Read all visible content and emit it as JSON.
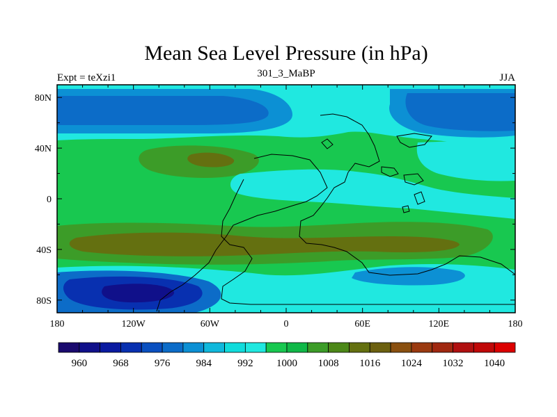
{
  "chart_data": {
    "type": "heatmap",
    "title": "Mean Sea Level Pressure (in hPa)",
    "subtitle_left": "Expt = teXzi1",
    "subtitle_center": "301_3_MaBP",
    "subtitle_right": "JJA",
    "x_ticks": [
      "180",
      "120W",
      "60W",
      "0",
      "60E",
      "120E",
      "180"
    ],
    "x_values": [
      -180,
      -120,
      -60,
      0,
      60,
      120,
      180
    ],
    "y_ticks": [
      "80N",
      "40N",
      "0",
      "40S",
      "80S"
    ],
    "y_values": [
      80,
      40,
      0,
      -40,
      -80
    ],
    "xlim": [
      -180,
      180
    ],
    "ylim": [
      -90,
      90
    ],
    "colorbar_labels": [
      "960",
      "968",
      "976",
      "984",
      "992",
      "1000",
      "1008",
      "1016",
      "1024",
      "1032",
      "1040"
    ],
    "colorbar_label_positions": [
      1,
      3,
      5,
      7,
      9,
      11,
      13,
      15,
      17,
      19,
      21
    ],
    "colorbar_colors": [
      "#1a0a6e",
      "#10108a",
      "#0a1aa0",
      "#0830b0",
      "#0a50c0",
      "#0c6cc8",
      "#0c90d4",
      "#10b8dc",
      "#10dcdc",
      "#20e8e0",
      "#18c850",
      "#10b848",
      "#3c9c28",
      "#4c8818",
      "#647010",
      "#6c6010",
      "#8a5010",
      "#9a3a10",
      "#a02810",
      "#b01010",
      "#c00808",
      "#dc0000"
    ],
    "field_regions": [
      {
        "name": "field-background-1004",
        "level": 1004,
        "color": "#18c850"
      },
      {
        "name": "field-north-high-band",
        "level": 996,
        "color": "#20e8e0"
      },
      {
        "name": "field-arctic-low-west",
        "level": 988,
        "color": "#0c90d4"
      },
      {
        "name": "field-arctic-low-west-core",
        "level": 984,
        "color": "#0c6cc8"
      },
      {
        "name": "field-arctic-low-east",
        "level": 988,
        "color": "#0c90d4"
      },
      {
        "name": "field-arctic-low-east-core",
        "level": 984,
        "color": "#0c6cc8"
      },
      {
        "name": "field-north-subtropical-high",
        "level": 1012,
        "color": "#3c9c28"
      },
      {
        "name": "field-north-subtropical-high-core",
        "level": 1016,
        "color": "#647010"
      },
      {
        "name": "field-east-subtropical-high",
        "level": 1000,
        "color": "#20e8e0"
      },
      {
        "name": "field-equatorial-trough",
        "level": 996,
        "color": "#20e8e0"
      },
      {
        "name": "field-south-subtropical-high",
        "level": 1012,
        "color": "#3c9c28"
      },
      {
        "name": "field-south-subtropical-high-core",
        "level": 1016,
        "color": "#647010"
      },
      {
        "name": "field-southern-ocean-trough",
        "level": 996,
        "color": "#20e8e0"
      },
      {
        "name": "field-antarctic-low",
        "level": 984,
        "color": "#0c6cc8"
      },
      {
        "name": "field-antarctic-low-mid",
        "level": 976,
        "color": "#0830b0"
      },
      {
        "name": "field-antarctic-low-core",
        "level": 968,
        "color": "#10108a"
      },
      {
        "name": "field-southeast-low",
        "level": 988,
        "color": "#0c90d4"
      }
    ]
  },
  "colors": {
    "outline": "#000000",
    "background": "#ffffff"
  }
}
